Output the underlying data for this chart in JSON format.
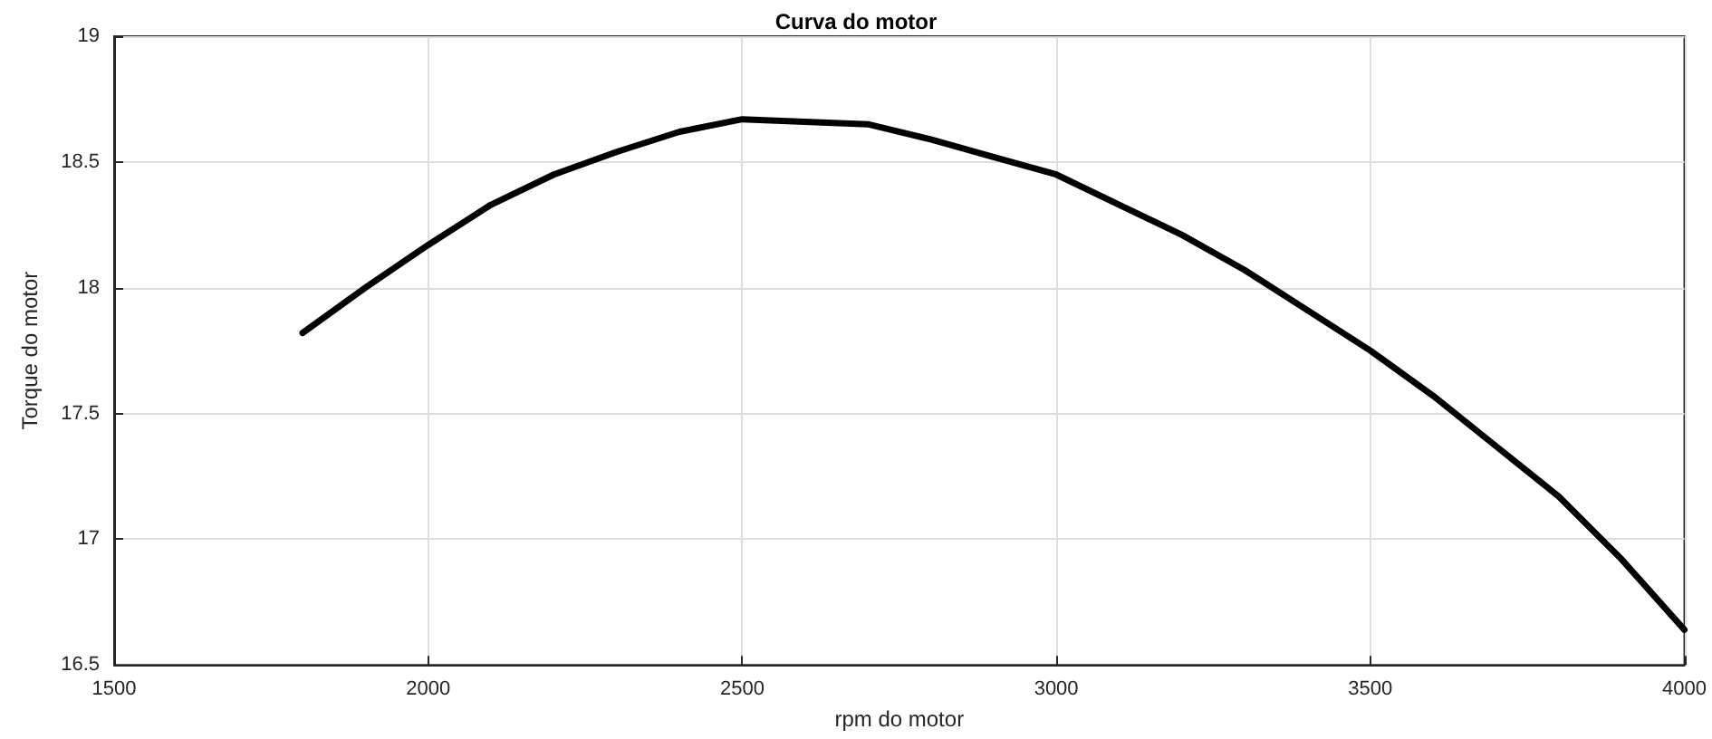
{
  "chart_data": {
    "type": "line",
    "title": "Curva do motor",
    "xlabel": "rpm do motor",
    "ylabel": "Torque do motor",
    "x": [
      1800,
      1900,
      2000,
      2100,
      2200,
      2300,
      2400,
      2500,
      2600,
      2700,
      2800,
      2900,
      3000,
      3100,
      3200,
      3300,
      3400,
      3500,
      3600,
      3700,
      3800,
      3900,
      4000
    ],
    "series": [
      {
        "color": "#000000",
        "values": [
          17.82,
          18.0,
          18.17,
          18.33,
          18.45,
          18.54,
          18.62,
          18.67,
          18.66,
          18.65,
          18.59,
          18.52,
          18.45,
          18.33,
          18.21,
          18.07,
          17.91,
          17.75,
          17.57,
          17.37,
          17.17,
          16.92,
          16.64
        ]
      }
    ],
    "xlim": [
      1500,
      4000
    ],
    "xticks": [
      1500,
      2000,
      2500,
      3000,
      3500,
      4000
    ],
    "ylim": [
      16.5,
      19
    ],
    "yticks": [
      16.5,
      17,
      17.5,
      18,
      18.5,
      19
    ],
    "grid": true,
    "marker": "none",
    "line_style": "solid"
  }
}
